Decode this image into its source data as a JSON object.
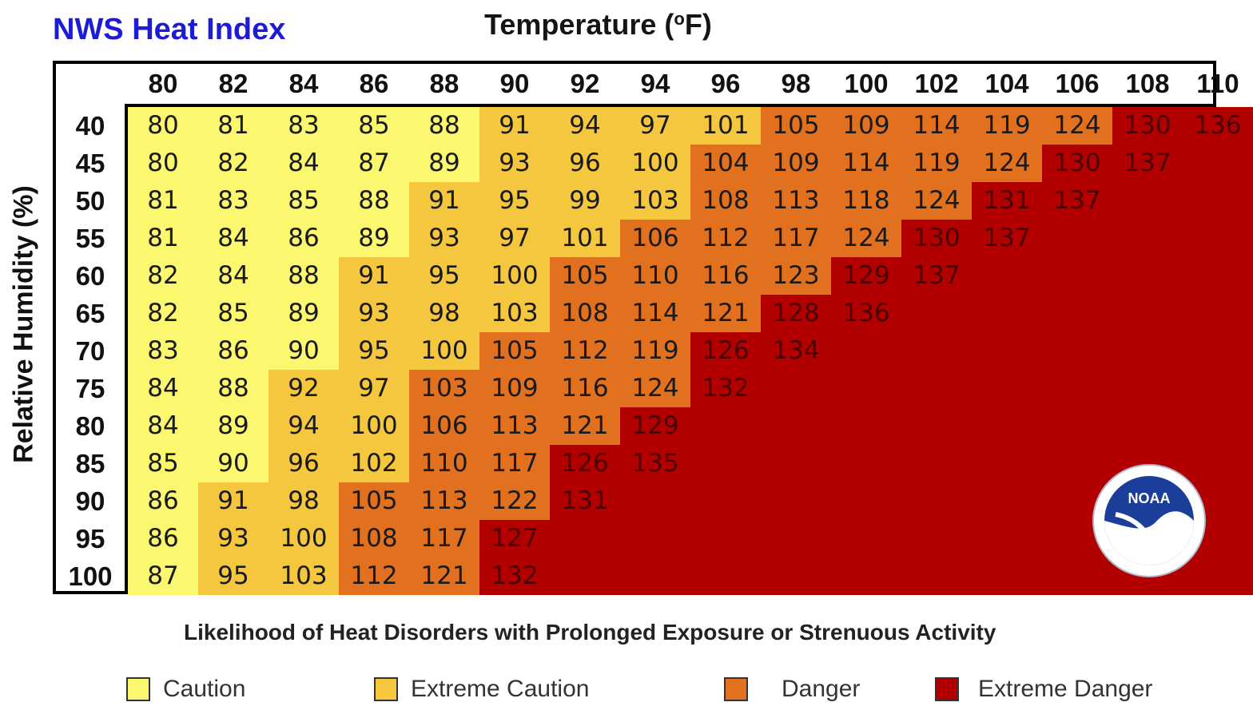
{
  "title": "NWS Heat Index",
  "x_title": "Temperature (",
  "x_title_deg": "o",
  "x_title_unit": "F)",
  "y_title": "Relative Humidity (%)",
  "subtitle": "Likelihood of Heat Disorders with Prolonged Exposure or Strenuous Activity",
  "logo_text": "NOAA",
  "legend": [
    {
      "label": "Caution",
      "color": "#fbf870"
    },
    {
      "label": "Extreme Caution",
      "color": "#f4c73f"
    },
    {
      "label": "Danger",
      "color": "#e1711f"
    },
    {
      "label": "Extreme Danger",
      "color": "#b20000"
    }
  ],
  "chart_data": {
    "type": "table",
    "title": "NWS Heat Index",
    "xlabel": "Temperature (oF)",
    "ylabel": "Relative Humidity (%)",
    "temperatures": [
      "80",
      "82",
      "84",
      "86",
      "88",
      "90",
      "92",
      "94",
      "96",
      "98",
      "100",
      "102",
      "104",
      "106",
      "108",
      "110"
    ],
    "humidities": [
      "40",
      "45",
      "50",
      "55",
      "60",
      "65",
      "70",
      "75",
      "80",
      "85",
      "90",
      "95",
      "100"
    ],
    "values": [
      [
        80,
        81,
        83,
        85,
        88,
        91,
        94,
        97,
        101,
        105,
        109,
        114,
        119,
        124,
        130,
        136
      ],
      [
        80,
        82,
        84,
        87,
        89,
        93,
        96,
        100,
        104,
        109,
        114,
        119,
        124,
        130,
        137,
        null
      ],
      [
        81,
        83,
        85,
        88,
        91,
        95,
        99,
        103,
        108,
        113,
        118,
        124,
        131,
        137,
        null,
        null
      ],
      [
        81,
        84,
        86,
        89,
        93,
        97,
        101,
        106,
        112,
        117,
        124,
        130,
        137,
        null,
        null,
        null
      ],
      [
        82,
        84,
        88,
        91,
        95,
        100,
        105,
        110,
        116,
        123,
        129,
        137,
        null,
        null,
        null,
        null
      ],
      [
        82,
        85,
        89,
        93,
        98,
        103,
        108,
        114,
        121,
        128,
        136,
        null,
        null,
        null,
        null,
        null
      ],
      [
        83,
        86,
        90,
        95,
        100,
        105,
        112,
        119,
        126,
        134,
        null,
        null,
        null,
        null,
        null,
        null
      ],
      [
        84,
        88,
        92,
        97,
        103,
        109,
        116,
        124,
        132,
        null,
        null,
        null,
        null,
        null,
        null,
        null
      ],
      [
        84,
        89,
        94,
        100,
        106,
        113,
        121,
        129,
        null,
        null,
        null,
        null,
        null,
        null,
        null,
        null
      ],
      [
        85,
        90,
        96,
        102,
        110,
        117,
        126,
        135,
        null,
        null,
        null,
        null,
        null,
        null,
        null,
        null
      ],
      [
        86,
        91,
        98,
        105,
        113,
        122,
        131,
        null,
        null,
        null,
        null,
        null,
        null,
        null,
        null,
        null
      ],
      [
        86,
        93,
        100,
        108,
        117,
        127,
        null,
        null,
        null,
        null,
        null,
        null,
        null,
        null,
        null,
        null
      ],
      [
        87,
        95,
        103,
        112,
        121,
        132,
        null,
        null,
        null,
        null,
        null,
        null,
        null,
        null,
        null,
        null
      ]
    ],
    "categories": [
      [
        0,
        0,
        0,
        0,
        0,
        1,
        1,
        1,
        1,
        2,
        2,
        2,
        2,
        2,
        3,
        3
      ],
      [
        0,
        0,
        0,
        0,
        0,
        1,
        1,
        1,
        2,
        2,
        2,
        2,
        2,
        3,
        3,
        3
      ],
      [
        0,
        0,
        0,
        0,
        1,
        1,
        1,
        1,
        2,
        2,
        2,
        2,
        3,
        3,
        3,
        3
      ],
      [
        0,
        0,
        0,
        0,
        1,
        1,
        1,
        2,
        2,
        2,
        2,
        3,
        3,
        3,
        3,
        3
      ],
      [
        0,
        0,
        0,
        1,
        1,
        1,
        2,
        2,
        2,
        2,
        3,
        3,
        3,
        3,
        3,
        3
      ],
      [
        0,
        0,
        0,
        1,
        1,
        1,
        2,
        2,
        2,
        3,
        3,
        3,
        3,
        3,
        3,
        3
      ],
      [
        0,
        0,
        0,
        1,
        1,
        2,
        2,
        2,
        3,
        3,
        3,
        3,
        3,
        3,
        3,
        3
      ],
      [
        0,
        0,
        1,
        1,
        2,
        2,
        2,
        2,
        3,
        3,
        3,
        3,
        3,
        3,
        3,
        3
      ],
      [
        0,
        0,
        1,
        1,
        2,
        2,
        2,
        3,
        3,
        3,
        3,
        3,
        3,
        3,
        3,
        3
      ],
      [
        0,
        0,
        1,
        1,
        2,
        2,
        3,
        3,
        3,
        3,
        3,
        3,
        3,
        3,
        3,
        3
      ],
      [
        0,
        1,
        1,
        2,
        2,
        2,
        3,
        3,
        3,
        3,
        3,
        3,
        3,
        3,
        3,
        3
      ],
      [
        0,
        1,
        1,
        2,
        2,
        3,
        3,
        3,
        3,
        3,
        3,
        3,
        3,
        3,
        3,
        3
      ],
      [
        0,
        1,
        1,
        2,
        2,
        3,
        3,
        3,
        3,
        3,
        3,
        3,
        3,
        3,
        3,
        3
      ]
    ],
    "category_names": [
      "Caution",
      "Extreme Caution",
      "Danger",
      "Extreme Danger"
    ]
  }
}
